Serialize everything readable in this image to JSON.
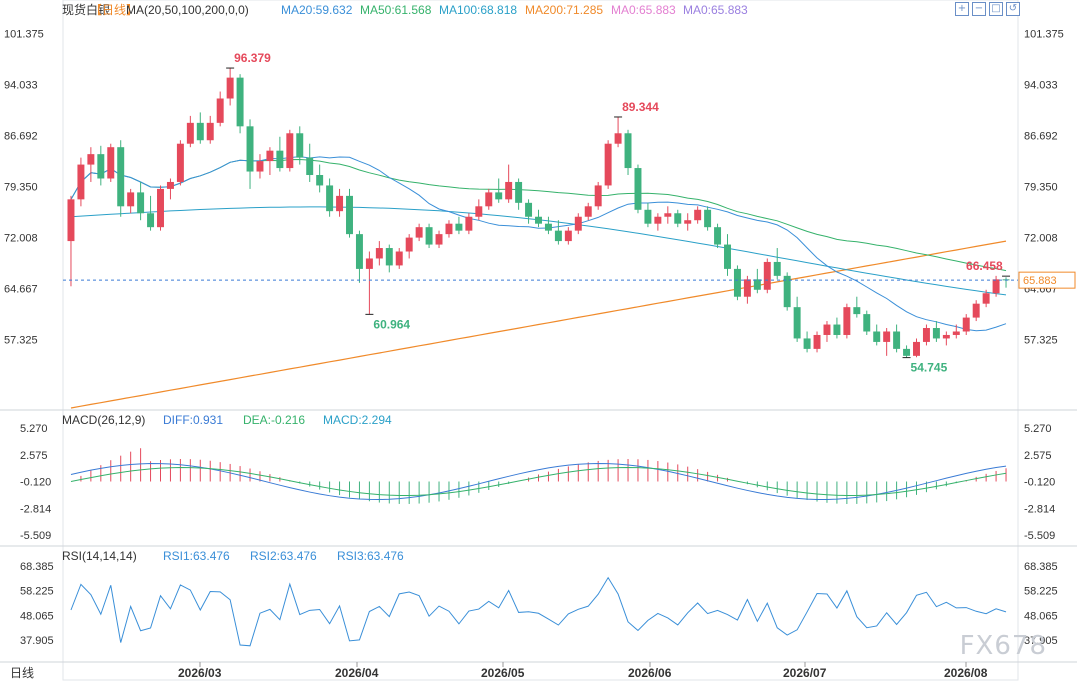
{
  "header": {
    "title": "现货白银",
    "period": "【日线】",
    "ma_label": "MA(20,50,100,200,0,0)",
    "ma20": "MA20:59.632",
    "ma50": "MA50:61.568",
    "ma100": "MA100:68.818",
    "ma200": "MA200:71.285",
    "ma0a": "MA0:65.883",
    "ma0b": "MA0:65.883",
    "colors": {
      "ma20": "#3a8fd8",
      "ma50": "#35b26b",
      "ma100": "#2aa0c8",
      "ma200": "#f08a2a",
      "ma0a": "#e37fd1",
      "ma0b": "#9a7fe0"
    }
  },
  "macd_header": {
    "label": "MACD(26,12,9)",
    "diff": "DIFF:0.931",
    "dea": "DEA:-0.216",
    "macd": "MACD:2.294"
  },
  "rsi_header": {
    "label": "RSI(14,14,14)",
    "rsi1": "RSI1:63.476",
    "rsi2": "RSI2:63.476",
    "rsi3": "RSI3:63.476"
  },
  "toolbar": {
    "icons": [
      "zoom-in-icon",
      "zoom-out-icon",
      "fit-icon",
      "reset-icon"
    ]
  },
  "watermark": "FX678",
  "bottom_period": "日线",
  "last_price": "65.883",
  "chart_data": {
    "type": "candlestick",
    "price_axis": {
      "ticks": [
        "101.375",
        "94.033",
        "86.692",
        "79.350",
        "72.008",
        "64.667",
        "57.325"
      ],
      "range": [
        47.5,
        103.0
      ]
    },
    "macd_axis": {
      "ticks": [
        "5.270",
        "2.575",
        "-0.120",
        "-2.814",
        "-5.509"
      ]
    },
    "rsi_axis": {
      "ticks": [
        "68.385",
        "58.225",
        "48.065",
        "37.905"
      ]
    },
    "x_ticks": [
      "2026/03",
      "2026/04",
      "2026/05",
      "2026/06",
      "2026/07",
      "2026/08"
    ],
    "annotations": [
      "96.379",
      "60.964",
      "89.344",
      "54.745",
      "66.458"
    ],
    "ohlc": [
      [
        71.5,
        78.0,
        65.0,
        77.5
      ],
      [
        77.5,
        83.5,
        76.5,
        82.5
      ],
      [
        82.5,
        85.0,
        80.0,
        84.0
      ],
      [
        84.0,
        85.2,
        79.5,
        80.5
      ],
      [
        80.5,
        85.5,
        80.0,
        85.0
      ],
      [
        85.0,
        86.0,
        75.0,
        76.5
      ],
      [
        76.5,
        79.0,
        75.5,
        78.5
      ],
      [
        78.5,
        80.0,
        74.5,
        75.5
      ],
      [
        75.5,
        78.0,
        73.0,
        73.5
      ],
      [
        73.5,
        79.5,
        73.0,
        79.0
      ],
      [
        79.0,
        80.5,
        77.5,
        80.0
      ],
      [
        80.0,
        86.0,
        79.5,
        85.5
      ],
      [
        85.5,
        89.5,
        85.0,
        88.5
      ],
      [
        88.5,
        90.0,
        85.5,
        86.0
      ],
      [
        86.0,
        89.5,
        85.5,
        88.5
      ],
      [
        88.5,
        93.0,
        88.0,
        92.0
      ],
      [
        92.0,
        96.4,
        91.0,
        95.0
      ],
      [
        95.0,
        95.5,
        87.0,
        88.0
      ],
      [
        88.0,
        89.0,
        79.0,
        81.5
      ],
      [
        81.5,
        84.0,
        80.5,
        83.0
      ],
      [
        83.0,
        85.0,
        81.0,
        84.5
      ],
      [
        84.5,
        86.5,
        81.5,
        82.0
      ],
      [
        82.0,
        87.5,
        81.5,
        87.0
      ],
      [
        87.0,
        88.0,
        82.5,
        83.5
      ],
      [
        83.5,
        85.5,
        80.0,
        81.0
      ],
      [
        81.0,
        82.5,
        78.5,
        79.5
      ],
      [
        79.5,
        80.5,
        75.0,
        75.8
      ],
      [
        75.8,
        79.0,
        75.0,
        78.0
      ],
      [
        78.0,
        79.0,
        72.0,
        72.5
      ],
      [
        72.5,
        73.0,
        65.5,
        67.5
      ],
      [
        67.5,
        70.0,
        61.0,
        69.0
      ],
      [
        69.0,
        71.5,
        68.0,
        70.5
      ],
      [
        70.5,
        71.0,
        67.0,
        68.0
      ],
      [
        68.0,
        70.5,
        67.5,
        70.0
      ],
      [
        70.0,
        72.5,
        69.0,
        72.0
      ],
      [
        72.0,
        74.0,
        71.5,
        73.5
      ],
      [
        73.5,
        74.0,
        70.5,
        71.0
      ],
      [
        71.0,
        73.0,
        70.5,
        72.5
      ],
      [
        72.5,
        74.5,
        72.0,
        74.0
      ],
      [
        74.0,
        75.0,
        72.5,
        73.0
      ],
      [
        73.0,
        75.5,
        72.5,
        75.0
      ],
      [
        75.0,
        77.5,
        74.5,
        76.5
      ],
      [
        76.5,
        79.0,
        76.0,
        78.5
      ],
      [
        78.5,
        80.5,
        77.0,
        77.5
      ],
      [
        77.5,
        82.5,
        77.0,
        80.0
      ],
      [
        80.0,
        80.5,
        76.0,
        77.0
      ],
      [
        77.0,
        77.5,
        74.0,
        75.0
      ],
      [
        75.0,
        76.0,
        73.5,
        74.0
      ],
      [
        74.0,
        75.0,
        72.5,
        73.0
      ],
      [
        73.0,
        74.5,
        71.0,
        71.5
      ],
      [
        71.5,
        73.5,
        71.0,
        73.0
      ],
      [
        73.0,
        75.5,
        72.5,
        75.0
      ],
      [
        75.0,
        77.0,
        74.5,
        76.5
      ],
      [
        76.5,
        80.0,
        76.0,
        79.5
      ],
      [
        79.5,
        86.0,
        79.0,
        85.5
      ],
      [
        85.5,
        89.3,
        85.0,
        87.0
      ],
      [
        87.0,
        87.5,
        81.0,
        82.0
      ],
      [
        82.0,
        82.5,
        75.5,
        76.0
      ],
      [
        76.0,
        77.0,
        73.5,
        74.0
      ],
      [
        74.0,
        75.5,
        73.0,
        75.0
      ],
      [
        75.0,
        76.5,
        74.0,
        75.5
      ],
      [
        75.5,
        76.0,
        73.5,
        74.0
      ],
      [
        74.0,
        75.5,
        73.0,
        74.5
      ],
      [
        74.5,
        76.5,
        74.0,
        76.0
      ],
      [
        76.0,
        76.5,
        73.0,
        73.5
      ],
      [
        73.5,
        74.0,
        70.5,
        71.0
      ],
      [
        71.0,
        72.5,
        66.5,
        67.5
      ],
      [
        67.5,
        68.0,
        63.0,
        63.5
      ],
      [
        63.5,
        66.5,
        62.5,
        66.0
      ],
      [
        66.0,
        67.5,
        64.0,
        64.5
      ],
      [
        64.5,
        69.0,
        64.0,
        68.5
      ],
      [
        68.5,
        70.5,
        66.0,
        66.5
      ],
      [
        66.5,
        67.0,
        61.5,
        62.0
      ],
      [
        62.0,
        63.5,
        57.0,
        57.5
      ],
      [
        57.5,
        58.5,
        55.5,
        56.0
      ],
      [
        56.0,
        58.5,
        55.5,
        58.0
      ],
      [
        58.0,
        60.0,
        57.0,
        59.5
      ],
      [
        59.5,
        60.5,
        57.5,
        58.0
      ],
      [
        58.0,
        62.5,
        57.5,
        62.0
      ],
      [
        62.0,
        63.5,
        60.5,
        61.0
      ],
      [
        61.0,
        61.5,
        58.0,
        58.5
      ],
      [
        58.5,
        59.5,
        56.5,
        57.0
      ],
      [
        57.0,
        59.0,
        55.0,
        58.5
      ],
      [
        58.5,
        59.5,
        55.5,
        56.0
      ],
      [
        56.0,
        56.5,
        54.7,
        55.0
      ],
      [
        55.0,
        57.5,
        54.8,
        57.0
      ],
      [
        57.0,
        59.5,
        56.5,
        59.0
      ],
      [
        59.0,
        60.0,
        57.0,
        57.5
      ],
      [
        57.5,
        58.5,
        56.5,
        58.0
      ],
      [
        58.0,
        59.5,
        57.5,
        58.5
      ],
      [
        58.5,
        61.0,
        58.0,
        60.5
      ],
      [
        60.5,
        63.0,
        60.0,
        62.5
      ],
      [
        62.5,
        64.5,
        62.0,
        64.0
      ],
      [
        64.0,
        66.5,
        63.5,
        66.0
      ],
      [
        66.0,
        66.3,
        64.8,
        65.9
      ]
    ]
  }
}
